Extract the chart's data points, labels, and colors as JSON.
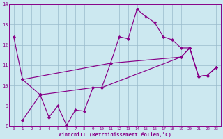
{
  "title": "",
  "xlabel": "Windchill (Refroidissement éolien,°C)",
  "ylabel": "",
  "bg_color": "#cce8f0",
  "line_color": "#880088",
  "xlim": [
    -0.5,
    23.5
  ],
  "ylim": [
    8,
    14
  ],
  "xticks": [
    0,
    1,
    2,
    3,
    4,
    5,
    6,
    7,
    8,
    9,
    10,
    11,
    12,
    13,
    14,
    15,
    16,
    17,
    18,
    19,
    20,
    21,
    22,
    23
  ],
  "yticks": [
    8,
    9,
    10,
    11,
    12,
    13,
    14
  ],
  "grid_color": "#99bbcc",
  "series": [
    {
      "x": [
        0,
        1,
        11,
        12,
        13,
        14,
        15,
        16,
        17,
        18,
        19,
        20,
        21,
        22,
        23
      ],
      "y": [
        12.4,
        10.3,
        11.1,
        12.4,
        12.3,
        13.75,
        13.4,
        13.1,
        12.4,
        12.25,
        11.85,
        11.85,
        10.45,
        10.5,
        10.9
      ]
    },
    {
      "x": [
        1,
        3,
        9,
        10,
        19,
        20,
        21,
        22,
        23
      ],
      "y": [
        10.3,
        9.55,
        9.9,
        9.9,
        11.4,
        11.85,
        10.45,
        10.5,
        10.9
      ]
    },
    {
      "x": [
        1,
        3,
        4,
        5,
        6,
        7,
        8,
        9,
        10,
        11,
        19,
        20,
        21,
        22,
        23
      ],
      "y": [
        8.3,
        9.55,
        8.45,
        9.0,
        8.05,
        8.8,
        8.75,
        9.9,
        9.9,
        11.1,
        11.4,
        11.85,
        10.45,
        10.5,
        10.9
      ]
    }
  ]
}
